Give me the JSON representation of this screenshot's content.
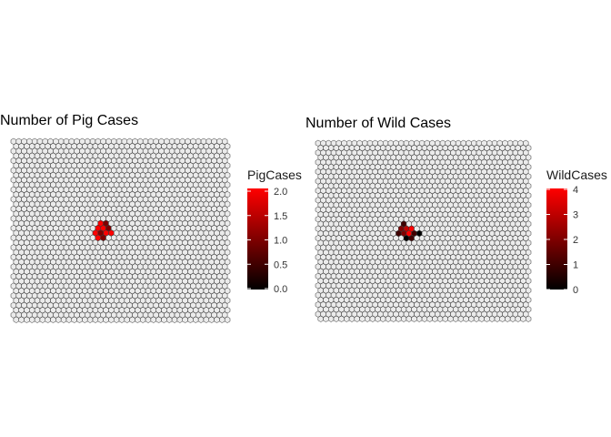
{
  "chart_data": [
    {
      "type": "heatmap",
      "title": "Number of Pig Cases",
      "legend": {
        "title": "PigCases",
        "placement": "right",
        "range": [
          0,
          2
        ],
        "ticks": [
          "0.0",
          "0.5",
          "1.0",
          "1.5",
          "2.0"
        ],
        "tick_values": [
          0,
          0.5,
          1,
          1.5,
          2
        ]
      },
      "colors": {
        "low": "#000000",
        "high": "#ff0000",
        "empty": "#ebebeb",
        "border": "#333333"
      },
      "grid": {
        "cols": 41,
        "rows": 38,
        "shape": "hexagon"
      },
      "cells": [
        {
          "col": 16,
          "row": 17,
          "value": 2
        },
        {
          "col": 17,
          "row": 17,
          "value": 1
        },
        {
          "col": 16,
          "row": 18,
          "value": 2
        },
        {
          "col": 17,
          "row": 18,
          "value": 2
        },
        {
          "col": 18,
          "row": 18,
          "value": 1
        },
        {
          "col": 15,
          "row": 19,
          "value": 2
        },
        {
          "col": 16,
          "row": 19,
          "value": 1
        },
        {
          "col": 17,
          "row": 19,
          "value": 2
        },
        {
          "col": 18,
          "row": 19,
          "value": 2
        },
        {
          "col": 16,
          "row": 20,
          "value": 2
        },
        {
          "col": 17,
          "row": 20,
          "value": 1
        }
      ]
    },
    {
      "type": "heatmap",
      "title": "Number of Wild Cases",
      "legend": {
        "title": "WildCases",
        "placement": "right",
        "range": [
          0,
          4
        ],
        "ticks": [
          "0",
          "1",
          "2",
          "3",
          "4"
        ],
        "tick_values": [
          0,
          1,
          2,
          3,
          4
        ]
      },
      "colors": {
        "low": "#000000",
        "high": "#ff0000",
        "empty": "#ebebeb",
        "border": "#333333"
      },
      "grid": {
        "cols": 41,
        "rows": 38,
        "shape": "hexagon"
      },
      "cells": [
        {
          "col": 16,
          "row": 17,
          "value": 1
        },
        {
          "col": 16,
          "row": 18,
          "value": 2
        },
        {
          "col": 17,
          "row": 18,
          "value": 3
        },
        {
          "col": 18,
          "row": 18,
          "value": 4
        },
        {
          "col": 15,
          "row": 19,
          "value": 1
        },
        {
          "col": 16,
          "row": 19,
          "value": 2
        },
        {
          "col": 17,
          "row": 19,
          "value": 4
        },
        {
          "col": 18,
          "row": 19,
          "value": 1
        },
        {
          "col": 19,
          "row": 19,
          "value": 0
        },
        {
          "col": 17,
          "row": 20,
          "value": 0
        },
        {
          "col": 18,
          "row": 20,
          "value": 1
        }
      ]
    }
  ]
}
